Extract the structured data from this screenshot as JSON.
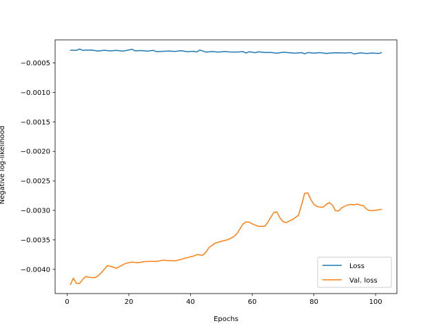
{
  "chart_data": {
    "type": "line",
    "title": "",
    "xlabel": "Epochs",
    "ylabel": "Negative log-likelihood",
    "xlim": [
      -3.9,
      106.9
    ],
    "ylim": [
      -0.00441,
      -0.00011
    ],
    "xticks": [
      0,
      20,
      40,
      60,
      80,
      100
    ],
    "yticks": [
      -0.004,
      -0.0035,
      -0.003,
      -0.0025,
      -0.002,
      -0.0015,
      -0.001,
      -0.0005
    ],
    "xtick_labels": [
      "0",
      "20",
      "40",
      "60",
      "80",
      "100"
    ],
    "ytick_labels": [
      "−0.0040",
      "−0.0035",
      "−0.0030",
      "−0.0025",
      "−0.0020",
      "−0.0015",
      "−0.0010",
      "−0.0005"
    ],
    "grid": false,
    "legend_position": "lower right",
    "series": [
      {
        "name": "Loss",
        "color": "#1f77b4",
        "points": [
          [
            1,
            -0.000285
          ],
          [
            2,
            -0.000286
          ],
          [
            3,
            -0.000287
          ],
          [
            4,
            -0.000265
          ],
          [
            5,
            -0.000287
          ],
          [
            6,
            -0.000284
          ],
          [
            8,
            -0.000281
          ],
          [
            10,
            -0.000299
          ],
          [
            12,
            -0.000286
          ],
          [
            14,
            -0.000296
          ],
          [
            16,
            -0.000288
          ],
          [
            18,
            -0.000301
          ],
          [
            20,
            -0.000283
          ],
          [
            21,
            -0.000268
          ],
          [
            22,
            -0.000296
          ],
          [
            24,
            -0.000291
          ],
          [
            26,
            -0.000301
          ],
          [
            28,
            -0.000288
          ],
          [
            29,
            -0.00031
          ],
          [
            31,
            -0.000304
          ],
          [
            33,
            -0.0003
          ],
          [
            35,
            -0.000306
          ],
          [
            37,
            -0.000293
          ],
          [
            39,
            -0.00031
          ],
          [
            41,
            -0.000303
          ],
          [
            42,
            -0.000316
          ],
          [
            43,
            -0.000283
          ],
          [
            45,
            -0.000318
          ],
          [
            47,
            -0.000308
          ],
          [
            49,
            -0.000317
          ],
          [
            51,
            -0.000308
          ],
          [
            53,
            -0.000315
          ],
          [
            55,
            -0.000316
          ],
          [
            57,
            -0.000309
          ],
          [
            58,
            -0.000332
          ],
          [
            59,
            -0.000312
          ],
          [
            61,
            -0.000327
          ],
          [
            62,
            -0.000313
          ],
          [
            64,
            -0.000324
          ],
          [
            66,
            -0.000322
          ],
          [
            68,
            -0.000336
          ],
          [
            70,
            -0.00032
          ],
          [
            72,
            -0.000327
          ],
          [
            74,
            -0.000336
          ],
          [
            76,
            -0.000326
          ],
          [
            77,
            -0.000347
          ],
          [
            78,
            -0.000325
          ],
          [
            80,
            -0.000335
          ],
          [
            82,
            -0.000326
          ],
          [
            84,
            -0.00034
          ],
          [
            86,
            -0.00033
          ],
          [
            88,
            -0.000328
          ],
          [
            90,
            -0.000333
          ],
          [
            92,
            -0.000326
          ],
          [
            93,
            -0.000349
          ],
          [
            95,
            -0.00033
          ],
          [
            97,
            -0.000341
          ],
          [
            99,
            -0.000333
          ],
          [
            101,
            -0.000341
          ],
          [
            102,
            -0.000325
          ]
        ]
      },
      {
        "name": "Val. loss",
        "color": "#ff7f0e",
        "points": [
          [
            1,
            -0.004265
          ],
          [
            2,
            -0.00415
          ],
          [
            3,
            -0.004236
          ],
          [
            4,
            -0.00424
          ],
          [
            5,
            -0.004174
          ],
          [
            6,
            -0.004122
          ],
          [
            8,
            -0.00414
          ],
          [
            9,
            -0.00414
          ],
          [
            10,
            -0.004109
          ],
          [
            11,
            -0.004061
          ],
          [
            12,
            -0.004001
          ],
          [
            13,
            -0.003937
          ],
          [
            14,
            -0.003949
          ],
          [
            16,
            -0.00398
          ],
          [
            17,
            -0.003952
          ],
          [
            19,
            -0.003897
          ],
          [
            21,
            -0.003876
          ],
          [
            23,
            -0.003887
          ],
          [
            25,
            -0.003868
          ],
          [
            27,
            -0.003866
          ],
          [
            29,
            -0.003866
          ],
          [
            31,
            -0.003844
          ],
          [
            33,
            -0.003851
          ],
          [
            35,
            -0.003857
          ],
          [
            37,
            -0.003829
          ],
          [
            39,
            -0.003801
          ],
          [
            41,
            -0.003774
          ],
          [
            42,
            -0.00375
          ],
          [
            44,
            -0.00376
          ],
          [
            45,
            -0.003709
          ],
          [
            46,
            -0.003629
          ],
          [
            48,
            -0.003555
          ],
          [
            50,
            -0.003524
          ],
          [
            52,
            -0.003499
          ],
          [
            54,
            -0.003447
          ],
          [
            55,
            -0.003396
          ],
          [
            56,
            -0.003317
          ],
          [
            57,
            -0.00323
          ],
          [
            58,
            -0.003198
          ],
          [
            59,
            -0.003198
          ],
          [
            60,
            -0.00323
          ],
          [
            62,
            -0.00327
          ],
          [
            64,
            -0.003272
          ],
          [
            65,
            -0.003209
          ],
          [
            66,
            -0.003118
          ],
          [
            67,
            -0.003035
          ],
          [
            68,
            -0.003027
          ],
          [
            69,
            -0.003128
          ],
          [
            70,
            -0.003191
          ],
          [
            71,
            -0.003207
          ],
          [
            73,
            -0.003156
          ],
          [
            74,
            -0.003122
          ],
          [
            75,
            -0.003082
          ],
          [
            76,
            -0.002907
          ],
          [
            77,
            -0.002709
          ],
          [
            78,
            -0.002703
          ],
          [
            79,
            -0.002815
          ],
          [
            80,
            -0.0029
          ],
          [
            81,
            -0.002932
          ],
          [
            82,
            -0.002945
          ],
          [
            83,
            -0.002945
          ],
          [
            84,
            -0.002899
          ],
          [
            85,
            -0.002868
          ],
          [
            86,
            -0.002911
          ],
          [
            87,
            -0.003007
          ],
          [
            88,
            -0.003009
          ],
          [
            89,
            -0.002957
          ],
          [
            90,
            -0.00293
          ],
          [
            91,
            -0.002907
          ],
          [
            92,
            -0.0029
          ],
          [
            93,
            -0.002907
          ],
          [
            94,
            -0.002893
          ],
          [
            95,
            -0.002911
          ],
          [
            96,
            -0.00292
          ],
          [
            97,
            -0.002975
          ],
          [
            98,
            -0.003003
          ],
          [
            99,
            -0.003005
          ],
          [
            100,
            -0.002999
          ],
          [
            101,
            -0.002989
          ],
          [
            102,
            -0.00298
          ]
        ]
      }
    ]
  }
}
